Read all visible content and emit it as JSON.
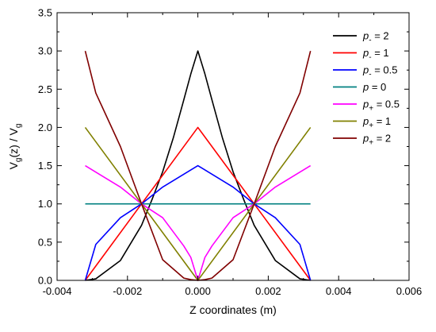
{
  "chart_data": {
    "type": "line",
    "xlabel": "Z coordinates (m)",
    "ylabel": "V(z) / V",
    "ylabel_sub": "g",
    "xlim": [
      -0.004,
      0.006
    ],
    "ylim": [
      0.0,
      3.5
    ],
    "xticks": [
      -0.004,
      -0.002,
      0.0,
      0.002,
      0.004,
      0.006
    ],
    "xtick_labels": [
      "-0.004",
      "-0.002",
      "0.000",
      "0.002",
      "0.004",
      "0.006"
    ],
    "yticks": [
      0.0,
      0.5,
      1.0,
      1.5,
      2.0,
      2.5,
      3.0,
      3.5
    ],
    "ytick_labels": [
      "0.0",
      "0.5",
      "1.0",
      "1.5",
      "2.0",
      "2.5",
      "3.0",
      "3.5"
    ],
    "grid": false,
    "legend_position": "top-right",
    "series": [
      {
        "name": "p- = 2",
        "sym": "p",
        "sub": "-",
        "rest": " = 2",
        "color": "#000000",
        "x": [
          -0.0032,
          -0.0029,
          -0.0022,
          -0.0016,
          -0.0013,
          -0.001,
          -0.0007,
          -0.0004,
          -0.0002,
          0.0,
          0.0002,
          0.0004,
          0.0007,
          0.001,
          0.0013,
          0.0016,
          0.0022,
          0.0029,
          0.0032
        ],
        "y": [
          0.0,
          0.02,
          0.26,
          0.72,
          1.06,
          1.42,
          1.86,
          2.36,
          2.7,
          3.0,
          2.7,
          2.36,
          1.86,
          1.42,
          1.06,
          0.72,
          0.26,
          0.02,
          0.0
        ]
      },
      {
        "name": "p- = 1",
        "sym": "p",
        "sub": "-",
        "rest": " = 1",
        "color": "#ff0000",
        "x": [
          -0.0032,
          -0.0016,
          0.0,
          0.0016,
          0.0032
        ],
        "y": [
          0.0,
          1.0,
          2.0,
          1.0,
          0.0
        ]
      },
      {
        "name": "p- = 0.5",
        "sym": "p",
        "sub": "-",
        "rest": " = 0.5",
        "color": "#0000ff",
        "x": [
          -0.0032,
          -0.0029,
          -0.0022,
          -0.0016,
          -0.001,
          0.0,
          0.001,
          0.0016,
          0.0022,
          0.0029,
          0.0032
        ],
        "y": [
          0.0,
          0.47,
          0.82,
          1.0,
          1.22,
          1.5,
          1.22,
          1.0,
          0.82,
          0.47,
          0.0
        ]
      },
      {
        "name": "p = 0",
        "sym": "p",
        "sub": "",
        "rest": " = 0",
        "color": "#008080",
        "x": [
          -0.0032,
          0.0032
        ],
        "y": [
          1.0,
          1.0
        ]
      },
      {
        "name": "p+ = 0.5",
        "sym": "p",
        "sub": "+",
        "rest": " = 0.5",
        "color": "#ff00ff",
        "x": [
          -0.0032,
          -0.0022,
          -0.0016,
          -0.001,
          -0.0004,
          -0.0002,
          0.0,
          0.0002,
          0.0004,
          0.001,
          0.0016,
          0.0022,
          0.0032
        ],
        "y": [
          1.5,
          1.22,
          1.0,
          0.82,
          0.45,
          0.3,
          0.0,
          0.3,
          0.45,
          0.82,
          1.0,
          1.22,
          1.5
        ]
      },
      {
        "name": "p+ = 1",
        "sym": "p",
        "sub": "+",
        "rest": " = 1",
        "color": "#808000",
        "x": [
          -0.0032,
          0.0,
          0.0032
        ],
        "y": [
          2.0,
          0.0,
          2.0
        ]
      },
      {
        "name": "p+ = 2",
        "sym": "p",
        "sub": "+",
        "rest": " = 2",
        "color": "#800000",
        "x": [
          -0.0032,
          -0.0029,
          -0.0022,
          -0.0016,
          -0.001,
          -0.0004,
          -0.0002,
          0.0,
          0.0002,
          0.0004,
          0.001,
          0.0016,
          0.0022,
          0.0029,
          0.0032
        ],
        "y": [
          3.0,
          2.45,
          1.75,
          1.0,
          0.27,
          0.03,
          0.01,
          0.0,
          0.01,
          0.03,
          0.27,
          1.0,
          1.75,
          2.45,
          3.0
        ]
      }
    ]
  }
}
